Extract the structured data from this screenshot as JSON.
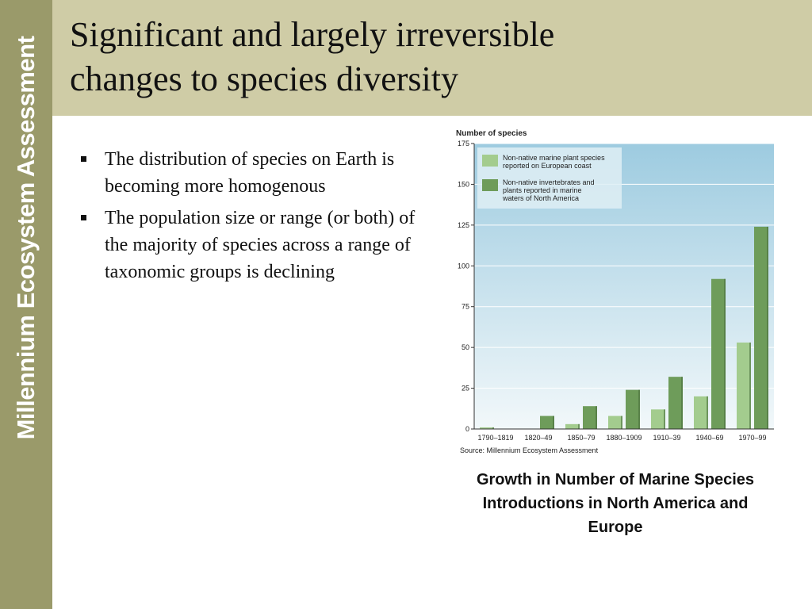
{
  "sidebar": {
    "text": "Millennium Ecosystem Assessment"
  },
  "slide": {
    "title_line1": "Significant and largely irreversible",
    "title_line2": "changes to species diversity",
    "bullets": [
      "The distribution of species on Earth is becoming more homogenous",
      "The population size or range (or both) of the majority of species across a range of taxonomic groups is declining"
    ],
    "caption": "Growth in Number of Marine Species Introductions in North America and Europe"
  },
  "colors": {
    "sidebar": "#9a9a6a",
    "header": "#cfcca6",
    "series_light": "#a3cc8e",
    "series_dark": "#6e9c5a",
    "plot_top": "#9dcbe0",
    "plot_bottom": "#f2f8fa"
  },
  "chart_data": {
    "type": "bar",
    "ylabel": "Number of species",
    "ylim": [
      0,
      175
    ],
    "yticks": [
      0,
      25,
      50,
      75,
      100,
      125,
      150,
      175
    ],
    "categories": [
      "1790–1819",
      "1820–49",
      "1850–79",
      "1880–1909",
      "1910–39",
      "1940–69",
      "1970–99"
    ],
    "series": [
      {
        "name": "Non-native marine plant species reported on European coast",
        "legend_lines": [
          "Non-native marine plant species",
          "reported on European coast"
        ],
        "values": [
          1,
          0,
          3,
          8,
          12,
          20,
          53
        ]
      },
      {
        "name": "Non-native invertebrates and plants reported in marine waters of North America",
        "legend_lines": [
          "Non-native invertebrates and",
          "plants reported in marine",
          "waters of North America"
        ],
        "values": [
          0,
          8,
          14,
          24,
          32,
          92,
          124
        ]
      }
    ],
    "grid": true,
    "legend_position": "top-left",
    "source": "Source: Millennium Ecosystem Assessment"
  }
}
